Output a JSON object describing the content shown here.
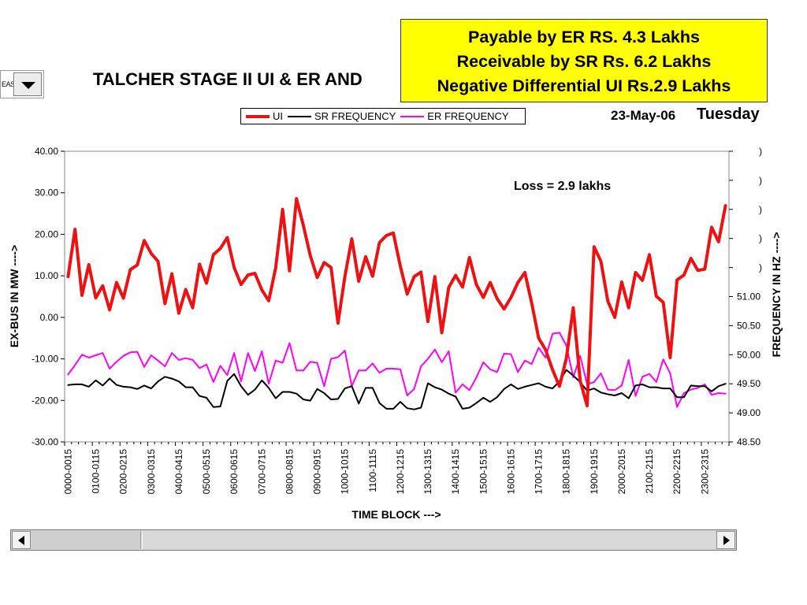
{
  "dropdown": {
    "partial_text": "EAS"
  },
  "callout": {
    "line1": "Payable by ER RS. 4.3 Lakhs",
    "line2": "Receivable by SR Rs. 6.2 Lakhs",
    "line3": "Negative Differential UI Rs.2.9 Lakhs"
  },
  "header": {
    "title_visible": "TALCHER STAGE II UI & ER AND",
    "date": "23-May-06",
    "day": "Tuesday"
  },
  "colors": {
    "ui": "#ee1111",
    "sr": "#000000",
    "er": "#ff00ff",
    "callout_bg": "#ffff00"
  },
  "chart_data": {
    "type": "line",
    "xlabel": "TIME BLOCK --->",
    "ylabel": "EX-BUS IN MW ---->",
    "y2label": "FREQUENCY IN HZ ---->",
    "annotation": "Loss = 2.9 lakhs",
    "ylim": [
      -30,
      40
    ],
    "y2lim": [
      48.5,
      53.5
    ],
    "y_ticks": [
      "40.00",
      "30.00",
      "20.00",
      "10.00",
      "0.00",
      "-10.00",
      "-20.00",
      "-30.00"
    ],
    "y2_ticks": [
      "51.00",
      "50.50",
      "50.00",
      "49.50",
      "49.00",
      "48.50"
    ],
    "x_tick_labels": [
      "0000-0015",
      "0100-0115",
      "0200-0215",
      "0300-0315",
      "0400-0415",
      "0500-0515",
      "0600-0615",
      "0700-0715",
      "0800-0815",
      "0900-0915",
      "1000-1015",
      "1100-1115",
      "1200-1215",
      "1300-1315",
      "1400-1415",
      "1500-1515",
      "1600-1615",
      "1700-1715",
      "1800-1815",
      "1900-1915",
      "2000-2015",
      "2100-2115",
      "2200-2215",
      "2300-2315"
    ],
    "legend": "top",
    "grid": false,
    "series": [
      {
        "name": "UI",
        "axis": "left",
        "values": [
          9.8,
          21.2,
          5.3,
          12.7,
          4.7,
          7.6,
          1.8,
          8.4,
          4.6,
          11.5,
          12.6,
          18.5,
          15.4,
          13.5,
          3.3,
          10.5,
          1.0,
          6.7,
          2.3,
          12.8,
          8.2,
          15.1,
          16.6,
          19.2,
          12.0,
          7.9,
          10.2,
          10.6,
          6.6,
          4.0,
          11.9,
          26.0,
          11.2,
          28.6,
          22.1,
          14.9,
          9.6,
          13.2,
          12.0,
          -1.4,
          9.8,
          18.9,
          8.7,
          14.6,
          9.9,
          18.0,
          19.7,
          20.3,
          12.4,
          5.6,
          9.8,
          10.9,
          -1.0,
          9.8,
          -3.7,
          7.2,
          10.1,
          7.3,
          14.4,
          7.9,
          4.8,
          8.4,
          4.5,
          2.0,
          4.8,
          8.4,
          10.8,
          3.4,
          -5.0,
          -7.8,
          -12.6,
          -16.6,
          -9.9,
          2.3,
          -15.3,
          -21.3,
          17.0,
          13.5,
          3.9,
          0.0,
          8.5,
          2.3,
          10.8,
          8.9,
          15.1,
          5.1,
          3.6,
          -9.7,
          9.0,
          10.2,
          14.2,
          11.3,
          11.6,
          21.7,
          18.2,
          26.9
        ]
      },
      {
        "name": "SR FREQUENCY",
        "axis": "right",
        "values": [
          49.48,
          49.49,
          49.49,
          49.45,
          49.56,
          49.47,
          49.59,
          49.48,
          49.45,
          49.44,
          49.41,
          49.47,
          49.42,
          49.54,
          49.62,
          49.59,
          49.54,
          49.44,
          49.44,
          49.29,
          49.26,
          49.1,
          49.11,
          49.55,
          49.67,
          49.46,
          49.31,
          49.4,
          49.56,
          49.43,
          49.25,
          49.36,
          49.36,
          49.33,
          49.23,
          49.21,
          49.41,
          49.34,
          49.23,
          49.24,
          49.42,
          49.46,
          49.16,
          49.43,
          49.43,
          49.17,
          49.07,
          49.07,
          49.19,
          49.08,
          49.06,
          49.09,
          49.51,
          49.44,
          49.4,
          49.33,
          49.28,
          49.07,
          49.09,
          49.17,
          49.26,
          49.19,
          49.27,
          49.41,
          49.49,
          49.41,
          49.45,
          49.48,
          49.51,
          49.45,
          49.42,
          49.54,
          49.74,
          49.64,
          49.53,
          49.38,
          49.42,
          49.35,
          49.32,
          49.3,
          49.34,
          49.25,
          49.47,
          49.49,
          49.44,
          49.44,
          49.42,
          49.42,
          49.27,
          49.27,
          49.47,
          49.46,
          49.46,
          49.37,
          49.46,
          49.5
        ]
      },
      {
        "name": "ER FREQUENCY",
        "axis": "right",
        "values": [
          49.66,
          49.82,
          50.0,
          49.95,
          49.99,
          50.03,
          49.76,
          49.88,
          49.98,
          50.04,
          50.05,
          49.79,
          49.99,
          49.9,
          49.8,
          50.03,
          49.91,
          49.94,
          49.91,
          49.77,
          49.83,
          49.53,
          49.81,
          49.65,
          50.03,
          49.54,
          50.03,
          49.72,
          50.06,
          49.5,
          49.9,
          49.86,
          50.2,
          49.73,
          49.73,
          49.88,
          49.86,
          49.46,
          49.93,
          49.96,
          50.07,
          49.46,
          49.73,
          49.73,
          49.85,
          49.69,
          49.76,
          49.76,
          49.75,
          49.3,
          49.41,
          49.8,
          49.93,
          50.09,
          49.87,
          50.06,
          49.35,
          49.49,
          49.39,
          49.61,
          49.87,
          49.75,
          49.7,
          50.02,
          50.01,
          49.7,
          49.9,
          49.84,
          50.12,
          49.95,
          50.36,
          50.38,
          50.16,
          49.61,
          49.98,
          49.49,
          49.53,
          49.68,
          49.4,
          49.39,
          49.47,
          49.91,
          49.29,
          49.62,
          49.67,
          49.53,
          49.92,
          49.68,
          49.1,
          49.34,
          49.4,
          49.43,
          49.49,
          49.31,
          49.34,
          49.33
        ]
      }
    ]
  },
  "scrollbar": {
    "left_arrow": "scroll-left-icon",
    "right_arrow": "scroll-right-icon"
  }
}
